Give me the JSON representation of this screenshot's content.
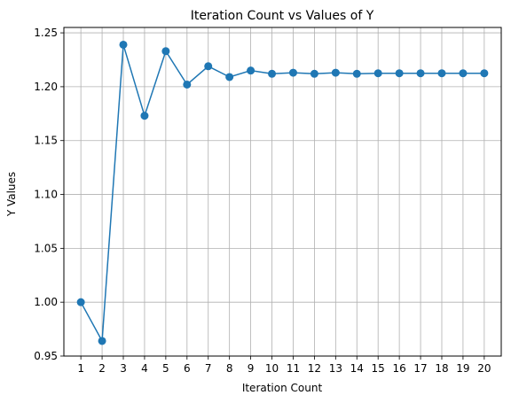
{
  "chart_data": {
    "type": "line",
    "title": "Iteration Count vs Values of Y",
    "xlabel": "Iteration Count",
    "ylabel": "Y Values",
    "x": [
      1,
      2,
      3,
      4,
      5,
      6,
      7,
      8,
      9,
      10,
      11,
      12,
      13,
      14,
      15,
      16,
      17,
      18,
      19,
      20
    ],
    "series": [
      {
        "values": [
          1.0,
          0.964,
          1.239,
          1.173,
          1.233,
          1.202,
          1.219,
          1.209,
          1.215,
          1.212,
          1.213,
          1.212,
          1.213,
          1.212,
          1.2125,
          1.2125,
          1.2125,
          1.2125,
          1.2125,
          1.2125
        ],
        "color": "#1f77b4",
        "marker": "circle"
      }
    ],
    "xlim": [
      0.2,
      20.8
    ],
    "ylim": [
      0.95,
      1.255
    ],
    "xticks": [
      "1",
      "2",
      "3",
      "4",
      "5",
      "6",
      "7",
      "8",
      "9",
      "10",
      "11",
      "12",
      "13",
      "14",
      "15",
      "16",
      "17",
      "18",
      "19",
      "20"
    ],
    "yticks": [
      "0.95",
      "1.00",
      "1.05",
      "1.10",
      "1.15",
      "1.20",
      "1.25"
    ],
    "grid": true,
    "legend": "none"
  }
}
